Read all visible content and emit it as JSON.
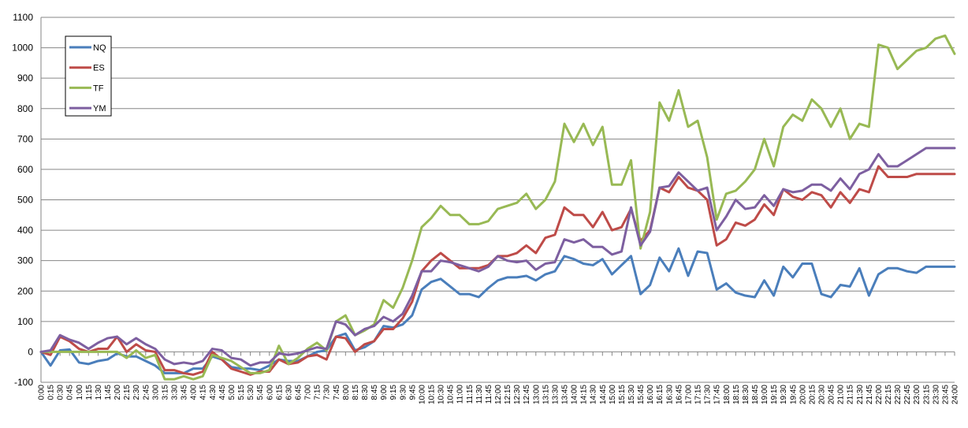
{
  "chart_data": {
    "type": "line",
    "title": "",
    "xlabel": "",
    "ylabel": "",
    "ylim": [
      -100,
      1100
    ],
    "yticks": [
      -100,
      0,
      100,
      200,
      300,
      400,
      500,
      600,
      700,
      800,
      900,
      1000,
      1100
    ],
    "grid": "horizontal",
    "legend_position": "top-left",
    "x": [
      "0:00",
      "0:15",
      "0:30",
      "0:45",
      "1:00",
      "1:15",
      "1:30",
      "1:45",
      "2:00",
      "2:15",
      "2:30",
      "2:45",
      "3:00",
      "3:15",
      "3:30",
      "3:45",
      "4:00",
      "4:15",
      "4:30",
      "4:45",
      "5:00",
      "5:15",
      "5:30",
      "5:45",
      "6:00",
      "6:15",
      "6:30",
      "6:45",
      "7:00",
      "7:15",
      "7:30",
      "7:45",
      "8:00",
      "8:15",
      "8:30",
      "8:45",
      "9:00",
      "9:15",
      "9:30",
      "9:45",
      "10:00",
      "10:15",
      "10:30",
      "10:45",
      "11:00",
      "11:15",
      "11:30",
      "11:45",
      "12:00",
      "12:15",
      "12:30",
      "12:45",
      "13:00",
      "13:15",
      "13:30",
      "13:45",
      "14:00",
      "14:15",
      "14:30",
      "14:45",
      "15:00",
      "15:15",
      "15:30",
      "15:45",
      "16:00",
      "16:15",
      "16:30",
      "16:45",
      "17:00",
      "17:15",
      "17:30",
      "17:45",
      "18:00",
      "18:15",
      "18:30",
      "18:45",
      "19:00",
      "19:15",
      "19:30",
      "19:45",
      "20:00",
      "20:15",
      "20:30",
      "20:45",
      "21:00",
      "21:15",
      "21:30",
      "21:45",
      "22:00",
      "22:15",
      "22:30",
      "22:45",
      "23:00",
      "23:15",
      "23:30",
      "23:45",
      "24:00"
    ],
    "series": [
      {
        "name": "NQ",
        "color": "#4a7ebb",
        "values": [
          0,
          -45,
          5,
          8,
          -35,
          -40,
          -30,
          -25,
          -5,
          -15,
          -15,
          -30,
          -45,
          -70,
          -70,
          -70,
          -55,
          -55,
          -15,
          -25,
          -50,
          -55,
          -55,
          -60,
          -45,
          -25,
          -30,
          -30,
          -15,
          0,
          5,
          50,
          60,
          5,
          15,
          35,
          85,
          80,
          90,
          120,
          205,
          230,
          240,
          215,
          190,
          190,
          180,
          210,
          235,
          245,
          245,
          250,
          235,
          255,
          265,
          315,
          305,
          290,
          285,
          305,
          255,
          285,
          315,
          190,
          220,
          310,
          265,
          340,
          250,
          330,
          325,
          205,
          225,
          195,
          185,
          180,
          235,
          185,
          280,
          245,
          290,
          290,
          190,
          180,
          220,
          215,
          275,
          185,
          255,
          275,
          275,
          265,
          260,
          280,
          280,
          280,
          280
        ]
      },
      {
        "name": "ES",
        "color": "#be4b48",
        "values": [
          0,
          -10,
          50,
          35,
          10,
          0,
          10,
          10,
          50,
          0,
          25,
          5,
          0,
          -60,
          -60,
          -70,
          -75,
          -65,
          0,
          -25,
          -55,
          -65,
          -75,
          -65,
          -65,
          -25,
          -40,
          -35,
          -15,
          -10,
          -25,
          50,
          45,
          0,
          25,
          35,
          75,
          75,
          110,
          165,
          265,
          300,
          325,
          300,
          275,
          275,
          275,
          285,
          315,
          315,
          325,
          350,
          325,
          375,
          385,
          475,
          450,
          450,
          410,
          460,
          400,
          410,
          470,
          365,
          400,
          540,
          525,
          575,
          540,
          530,
          500,
          350,
          370,
          425,
          415,
          435,
          485,
          450,
          535,
          510,
          500,
          525,
          515,
          475,
          525,
          490,
          535,
          525,
          610,
          575,
          575,
          575,
          585,
          585,
          585,
          585,
          585
        ]
      },
      {
        "name": "TF",
        "color": "#98b954",
        "values": [
          0,
          0,
          0,
          0,
          0,
          0,
          0,
          0,
          0,
          -20,
          5,
          -20,
          -10,
          -90,
          -90,
          -80,
          -90,
          -80,
          -10,
          -20,
          -30,
          -50,
          -70,
          -70,
          -60,
          20,
          -40,
          -20,
          10,
          30,
          5,
          100,
          120,
          55,
          70,
          90,
          170,
          145,
          210,
          300,
          410,
          440,
          480,
          450,
          450,
          420,
          420,
          430,
          470,
          480,
          490,
          520,
          470,
          500,
          560,
          750,
          690,
          750,
          680,
          740,
          550,
          550,
          630,
          340,
          460,
          820,
          760,
          860,
          740,
          760,
          640,
          435,
          520,
          530,
          560,
          600,
          700,
          610,
          740,
          780,
          760,
          830,
          800,
          740,
          800,
          700,
          750,
          740,
          1010,
          1000,
          930,
          960,
          990,
          1000,
          1030,
          1040,
          980
        ]
      },
      {
        "name": "YM",
        "color": "#7d5fa0",
        "values": [
          0,
          5,
          55,
          40,
          30,
          10,
          30,
          45,
          50,
          25,
          45,
          25,
          10,
          -25,
          -40,
          -35,
          -40,
          -30,
          10,
          5,
          -20,
          -25,
          -45,
          -35,
          -35,
          -5,
          -10,
          -5,
          5,
          15,
          10,
          100,
          90,
          55,
          75,
          85,
          115,
          100,
          125,
          185,
          265,
          265,
          300,
          295,
          285,
          275,
          265,
          280,
          315,
          300,
          295,
          300,
          270,
          290,
          295,
          370,
          360,
          370,
          345,
          345,
          320,
          330,
          475,
          350,
          395,
          540,
          545,
          590,
          560,
          530,
          540,
          400,
          445,
          500,
          470,
          475,
          515,
          480,
          535,
          525,
          530,
          550,
          550,
          530,
          570,
          535,
          585,
          600,
          650,
          610,
          610,
          630,
          650,
          670,
          670,
          670,
          670
        ]
      }
    ]
  }
}
